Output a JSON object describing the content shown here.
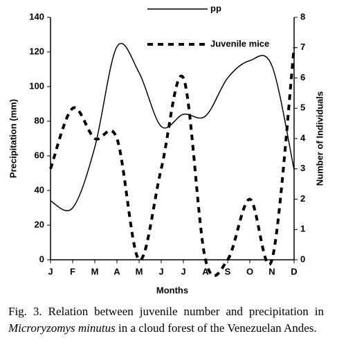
{
  "chart_data": {
    "type": "line",
    "categories": [
      "J",
      "F",
      "M",
      "A",
      "M",
      "J",
      "J",
      "A",
      "S",
      "O",
      "N",
      "D"
    ],
    "series": [
      {
        "name": "pp",
        "color": "#000000",
        "line_style": "solid",
        "values": [
          34,
          30,
          65,
          123,
          108,
          77,
          84,
          83,
          105,
          115,
          112,
          52
        ]
      },
      {
        "name": "Juvenile mice",
        "color": "#000000",
        "line_style": "dashed",
        "axis": "y2",
        "values": [
          3,
          5,
          4,
          4,
          0,
          3,
          6,
          0,
          0,
          2,
          0,
          7
        ]
      }
    ],
    "xlabel": "Months",
    "ylabel": "Precipitation (mm)",
    "y2label": "Number of Individuals",
    "ylim": [
      0,
      140
    ],
    "yticks": [
      0,
      20,
      40,
      60,
      80,
      100,
      120,
      140
    ],
    "y2lim": [
      0,
      8
    ],
    "y2ticks": [
      0,
      1,
      2,
      3,
      4,
      5,
      6,
      7,
      8
    ],
    "legend": "top"
  },
  "caption": {
    "prefix": "Fig. 3. Relation between juvenile number and precipitation in ",
    "italic": "Microryzomys minutus",
    "suffix": " in a cloud forest of the Venezuelan Andes."
  }
}
